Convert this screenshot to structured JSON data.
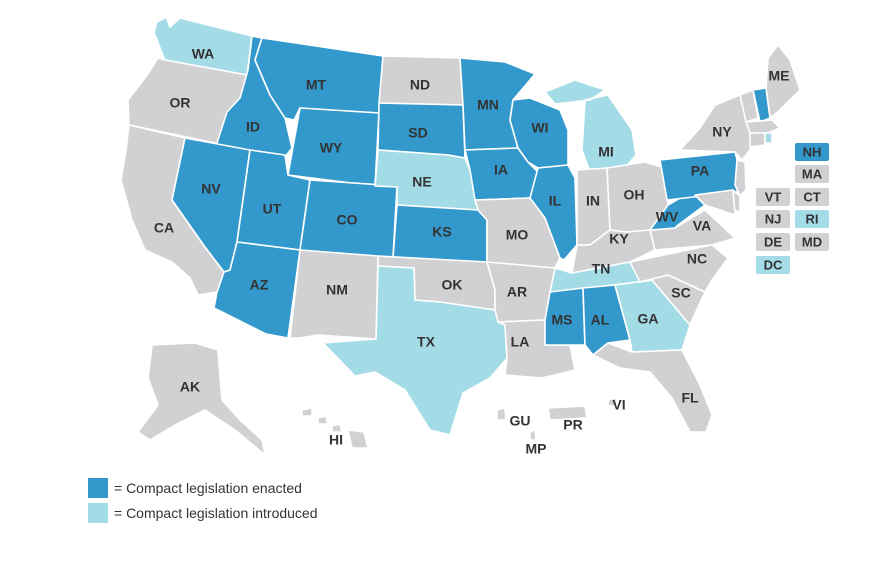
{
  "colors": {
    "enacted": "#3399cc",
    "introduced": "#a3dce6",
    "none": "#d1d1d3",
    "label": "#333333"
  },
  "legend": [
    {
      "status": "enacted",
      "label": "= Compact legislation enacted"
    },
    {
      "status": "introduced",
      "label": "= Compact legislation introduced"
    }
  ],
  "states": [
    {
      "code": "WA",
      "status": "introduced"
    },
    {
      "code": "OR",
      "status": "none"
    },
    {
      "code": "CA",
      "status": "none"
    },
    {
      "code": "ID",
      "status": "enacted"
    },
    {
      "code": "NV",
      "status": "enacted"
    },
    {
      "code": "MT",
      "status": "enacted"
    },
    {
      "code": "WY",
      "status": "enacted"
    },
    {
      "code": "UT",
      "status": "enacted"
    },
    {
      "code": "AZ",
      "status": "enacted"
    },
    {
      "code": "CO",
      "status": "enacted"
    },
    {
      "code": "NM",
      "status": "none"
    },
    {
      "code": "ND",
      "status": "none"
    },
    {
      "code": "SD",
      "status": "enacted"
    },
    {
      "code": "NE",
      "status": "introduced"
    },
    {
      "code": "KS",
      "status": "enacted"
    },
    {
      "code": "OK",
      "status": "none"
    },
    {
      "code": "TX",
      "status": "introduced"
    },
    {
      "code": "MN",
      "status": "enacted"
    },
    {
      "code": "IA",
      "status": "enacted"
    },
    {
      "code": "MO",
      "status": "none"
    },
    {
      "code": "AR",
      "status": "none"
    },
    {
      "code": "LA",
      "status": "none"
    },
    {
      "code": "WI",
      "status": "enacted"
    },
    {
      "code": "IL",
      "status": "enacted"
    },
    {
      "code": "MI",
      "status": "introduced"
    },
    {
      "code": "IN",
      "status": "none"
    },
    {
      "code": "OH",
      "status": "none"
    },
    {
      "code": "KY",
      "status": "none"
    },
    {
      "code": "TN",
      "status": "introduced"
    },
    {
      "code": "MS",
      "status": "enacted"
    },
    {
      "code": "AL",
      "status": "enacted"
    },
    {
      "code": "GA",
      "status": "introduced"
    },
    {
      "code": "FL",
      "status": "none"
    },
    {
      "code": "SC",
      "status": "none"
    },
    {
      "code": "NC",
      "status": "none"
    },
    {
      "code": "VA",
      "status": "none"
    },
    {
      "code": "WV",
      "status": "enacted"
    },
    {
      "code": "PA",
      "status": "enacted"
    },
    {
      "code": "NY",
      "status": "none"
    },
    {
      "code": "ME",
      "status": "none"
    },
    {
      "code": "NH",
      "status": "enacted"
    },
    {
      "code": "VT",
      "status": "none"
    },
    {
      "code": "MA",
      "status": "none"
    },
    {
      "code": "RI",
      "status": "introduced"
    },
    {
      "code": "CT",
      "status": "none"
    },
    {
      "code": "NJ",
      "status": "none"
    },
    {
      "code": "DE",
      "status": "none"
    },
    {
      "code": "MD",
      "status": "none"
    },
    {
      "code": "DC",
      "status": "introduced"
    },
    {
      "code": "AK",
      "status": "none"
    },
    {
      "code": "HI",
      "status": "none"
    },
    {
      "code": "GU",
      "status": "none"
    },
    {
      "code": "PR",
      "status": "none"
    },
    {
      "code": "VI",
      "status": "none"
    },
    {
      "code": "MP",
      "status": "none"
    }
  ]
}
